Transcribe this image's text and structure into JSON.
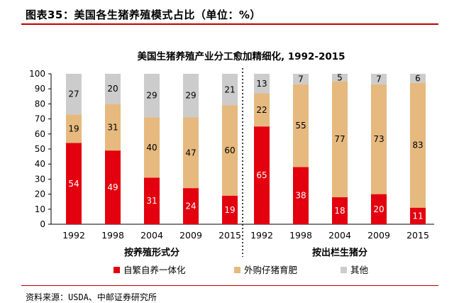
{
  "figure": {
    "title": "图表35：美国各生猪养殖模式占比（单位：%）",
    "source": "资料来源：USDA、中邮证券研究所"
  },
  "chart_data": {
    "type": "bar",
    "stacked": true,
    "title": "美国生猪养殖产业分工愈加精细化, 1992-2015",
    "ylim": [
      0,
      100
    ],
    "yticks": [
      0,
      10,
      20,
      30,
      40,
      50,
      60,
      70,
      80,
      90,
      100
    ],
    "groups": [
      {
        "label": "按养殖形式分",
        "categories": [
          "1992",
          "1998",
          "2004",
          "2009",
          "2015"
        ],
        "series": [
          {
            "name": "自繁自养一体化",
            "color": "#e3000f",
            "values": [
              54,
              49,
              31,
              24,
              19
            ]
          },
          {
            "name": "外购仔猪育肥",
            "color": "#e6b97f",
            "values": [
              19,
              31,
              40,
              47,
              60
            ]
          },
          {
            "name": "其他",
            "color": "#cccccc",
            "values": [
              27,
              20,
              29,
              29,
              21
            ]
          }
        ]
      },
      {
        "label": "按出栏生猪分",
        "categories": [
          "1992",
          "1998",
          "2004",
          "2009",
          "2015"
        ],
        "series": [
          {
            "name": "自繁自养一体化",
            "color": "#e3000f",
            "values": [
              65,
              38,
              18,
              20,
              11
            ]
          },
          {
            "name": "外购仔猪育肥",
            "color": "#e6b97f",
            "values": [
              22,
              55,
              77,
              73,
              83
            ]
          },
          {
            "name": "其他",
            "color": "#cccccc",
            "values": [
              13,
              7,
              5,
              7,
              6
            ]
          }
        ]
      }
    ],
    "legend": {
      "position": "bottom",
      "entries": [
        {
          "name": "自繁自养一体化",
          "color": "#e3000f"
        },
        {
          "name": "外购仔猪育肥",
          "color": "#e6b97f"
        },
        {
          "name": "其他",
          "color": "#cccccc"
        }
      ]
    },
    "grid": false
  }
}
